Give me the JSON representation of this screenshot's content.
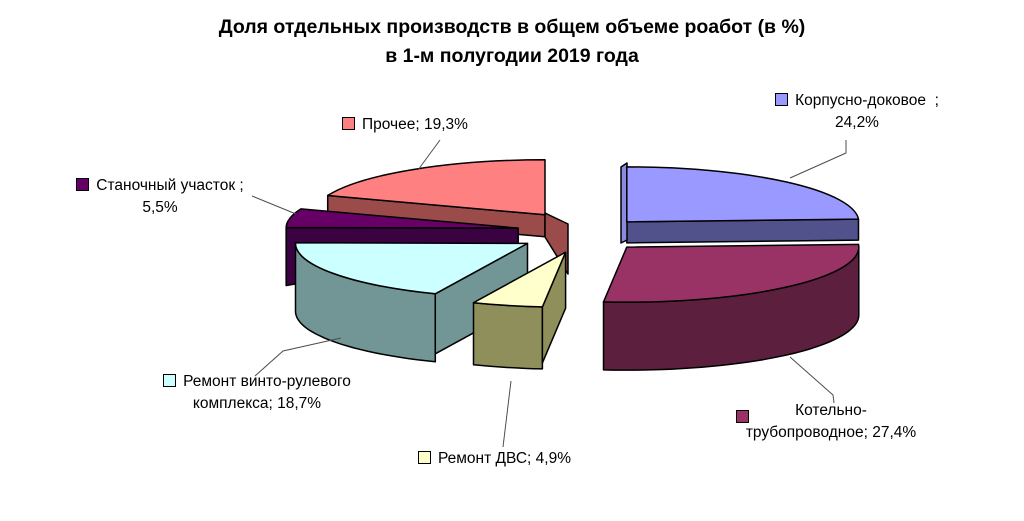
{
  "title": {
    "line1": "Доля отдельных производств в общем объеме роабот (в %)",
    "line2": "в 1-м полугодии 2019 года"
  },
  "chart_data": {
    "type": "pie",
    "style": "3d-exploded",
    "unit": "%",
    "start_angle_deg": 0,
    "direction": "clockwise",
    "background": "#ffffff",
    "series": [
      {
        "name": "Корпусно-доковое",
        "value": 24.2,
        "color": "#9999FF",
        "side_color": "#51518C"
      },
      {
        "name": "Котельно-трубопроводное",
        "value": 27.4,
        "color": "#993366",
        "side_color": "#5C1F3E"
      },
      {
        "name": "Ремонт ДВС",
        "value": 4.9,
        "color": "#FFFFCC",
        "side_color": "#8F8F5C"
      },
      {
        "name": "Ремонт винто-рулевого комплекса",
        "value": 18.7,
        "color": "#CCFFFF",
        "side_color": "#729595"
      },
      {
        "name": "Станочный участок",
        "value": 5.5,
        "color": "#660066",
        "side_color": "#3B0242"
      },
      {
        "name": "Прочее",
        "value": 19.3,
        "color": "#FF8080",
        "side_color": "#9C4B4B"
      }
    ],
    "labels": {
      "korpusno": {
        "series_index": 0,
        "lines": [
          "Корпусно-доковое  ;",
          "24,2%"
        ]
      },
      "kotelno": {
        "series_index": 1,
        "lines": [
          "Котельно-",
          "трубопроводное; 27,4%"
        ]
      },
      "dvs": {
        "series_index": 2,
        "lines": [
          "Ремонт ДВС; 4,9%"
        ]
      },
      "vinto": {
        "series_index": 3,
        "lines": [
          "Ремонт винто-рулевого",
          "комплекса; 18,7%"
        ]
      },
      "stanochny": {
        "series_index": 4,
        "lines": [
          "Станочный участок ;",
          "5,5%"
        ]
      },
      "prochee": {
        "series_index": 5,
        "lines": [
          "Прочее; 19,3%"
        ]
      }
    },
    "leader_line_color": "#4d4d4d"
  }
}
